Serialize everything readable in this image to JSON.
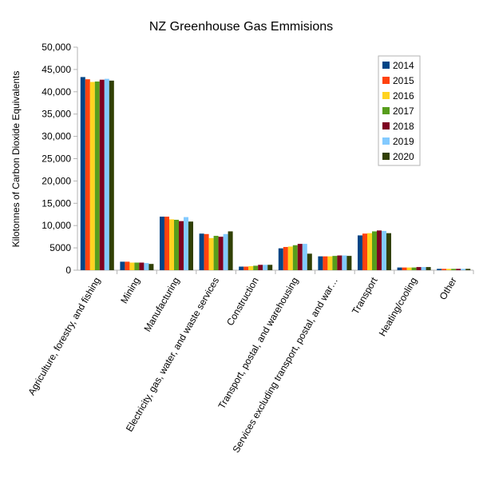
{
  "chart_data": {
    "type": "bar",
    "title": "NZ Greenhouse Gas Emmisions",
    "xlabel": "",
    "ylabel": "Kilotonnes of Carbon Dioxide Equivalents",
    "ylim": [
      0,
      50000
    ],
    "y_ticks": [
      "0",
      "5000",
      "10,000",
      "15,000",
      "20,000",
      "25,000",
      "30,000",
      "35,000",
      "40,000",
      "45,000",
      "50,000"
    ],
    "grid": false,
    "legend_position": "top-right",
    "categories": [
      "Agriculture, forestry, and fishing",
      "Mining",
      "Manufacturing",
      "Electricity, gas, water, and waste services",
      "Construction",
      "Transport, postal, and warehousing",
      "Services excluding transport, postal, and war…",
      "Transport",
      "Heating/cooling",
      "Other"
    ],
    "series": [
      {
        "name": "2014",
        "color": "#004586",
        "values": [
          43300,
          1900,
          12000,
          8200,
          800,
          4900,
          3100,
          7800,
          600,
          300
        ]
      },
      {
        "name": "2015",
        "color": "#ff420e",
        "values": [
          42800,
          1900,
          12000,
          8100,
          800,
          5200,
          3100,
          8200,
          600,
          300
        ]
      },
      {
        "name": "2016",
        "color": "#ffd320",
        "values": [
          42200,
          1700,
          11400,
          7200,
          900,
          5300,
          3100,
          8300,
          600,
          300
        ]
      },
      {
        "name": "2017",
        "color": "#579d1c",
        "values": [
          42300,
          1700,
          11300,
          7700,
          1000,
          5600,
          3200,
          8700,
          600,
          300
        ]
      },
      {
        "name": "2018",
        "color": "#7e0021",
        "values": [
          42700,
          1700,
          11000,
          7500,
          1200,
          5900,
          3300,
          8900,
          700,
          300
        ]
      },
      {
        "name": "2019",
        "color": "#83caff",
        "values": [
          42900,
          1600,
          11900,
          8100,
          1200,
          5900,
          3300,
          8800,
          700,
          300
        ]
      },
      {
        "name": "2020",
        "color": "#314004",
        "values": [
          42500,
          1400,
          10900,
          8700,
          1200,
          3700,
          3200,
          8300,
          700,
          300
        ]
      }
    ]
  }
}
